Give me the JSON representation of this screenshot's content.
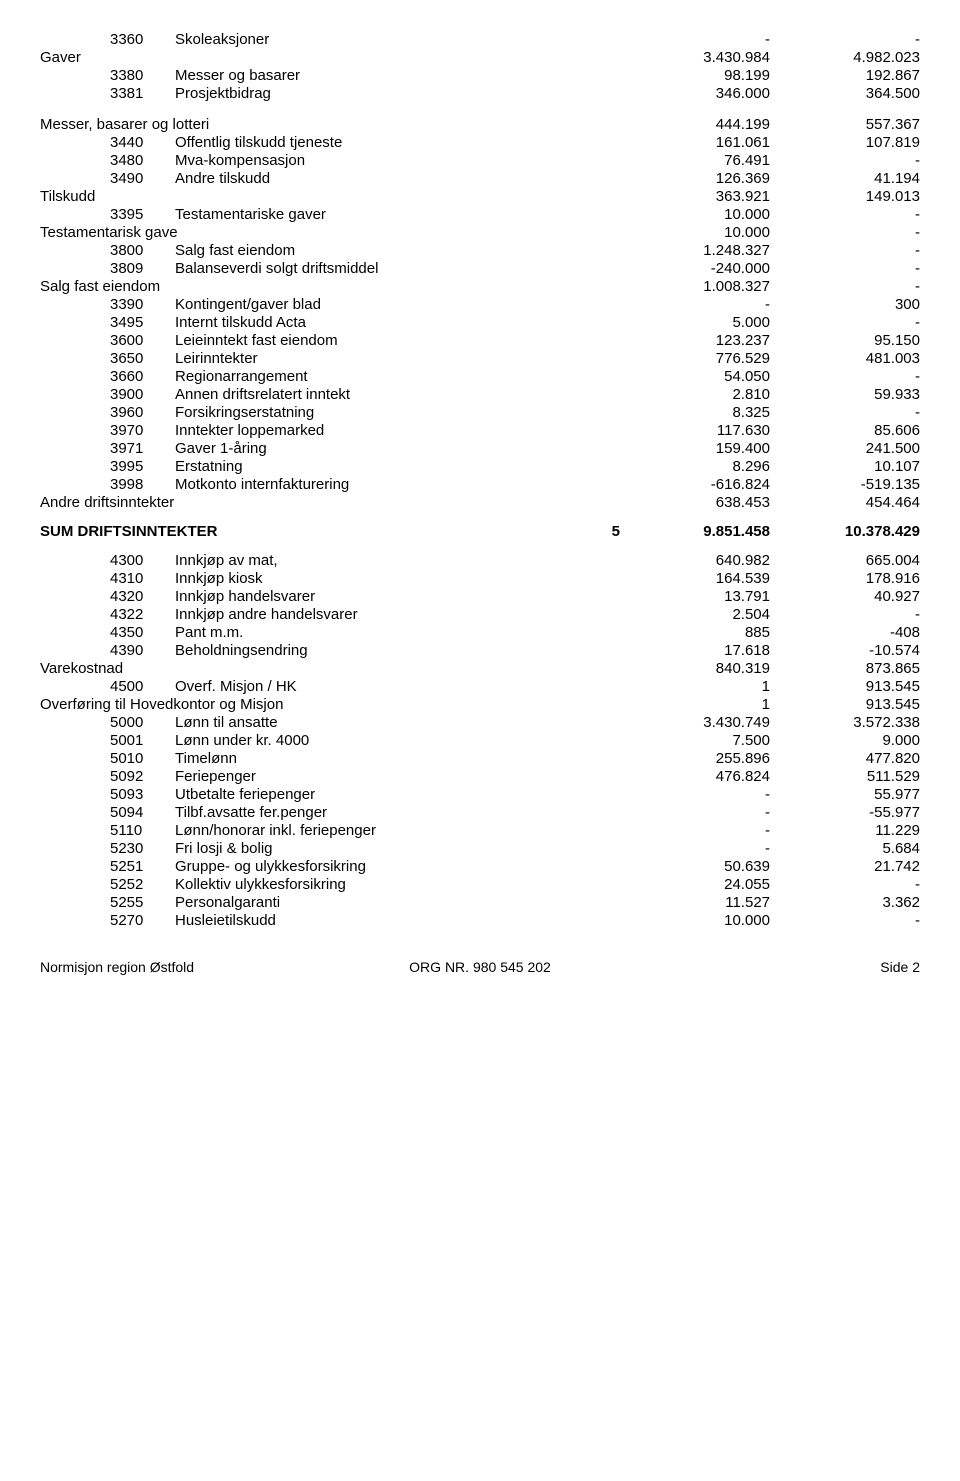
{
  "rows": [
    {
      "type": "line",
      "code": "3360",
      "label": "Skoleaksjoner",
      "v1": "-",
      "v2": "-"
    },
    {
      "type": "group",
      "label": "Gaver",
      "v1": "3.430.984",
      "v2": "4.982.023"
    },
    {
      "type": "line",
      "code": "3380",
      "label": "Messer og basarer",
      "v1": "98.199",
      "v2": "192.867"
    },
    {
      "type": "line",
      "code": "3381",
      "label": "Prosjektbidrag",
      "v1": "346.000",
      "v2": "364.500"
    },
    {
      "type": "spacer"
    },
    {
      "type": "group",
      "label": "Messer, basarer og lotteri",
      "v1": "444.199",
      "v2": "557.367"
    },
    {
      "type": "line",
      "code": "3440",
      "label": "Offentlig tilskudd tjeneste",
      "v1": "161.061",
      "v2": "107.819"
    },
    {
      "type": "line",
      "code": "3480",
      "label": "Mva-kompensasjon",
      "v1": "76.491",
      "v2": "-"
    },
    {
      "type": "line",
      "code": "3490",
      "label": "Andre tilskudd",
      "v1": "126.369",
      "v2": "41.194"
    },
    {
      "type": "group",
      "label": "Tilskudd",
      "v1": "363.921",
      "v2": "149.013"
    },
    {
      "type": "line",
      "code": "3395",
      "label": "Testamentariske gaver",
      "v1": "10.000",
      "v2": "-"
    },
    {
      "type": "group",
      "label": "Testamentarisk gave",
      "v1": "10.000",
      "v2": "-"
    },
    {
      "type": "line",
      "code": "3800",
      "label": "Salg fast eiendom",
      "v1": "1.248.327",
      "v2": "-"
    },
    {
      "type": "line",
      "code": "3809",
      "label": "Balanseverdi solgt driftsmiddel",
      "v1": "-240.000",
      "v2": "-"
    },
    {
      "type": "group",
      "label": "Salg fast eiendom",
      "v1": "1.008.327",
      "v2": "-"
    },
    {
      "type": "line",
      "code": "3390",
      "label": "Kontingent/gaver blad",
      "v1": "-",
      "v2": "300"
    },
    {
      "type": "line",
      "code": "3495",
      "label": "Internt tilskudd Acta",
      "v1": "5.000",
      "v2": "-"
    },
    {
      "type": "line",
      "code": "3600",
      "label": "Leieinntekt fast eiendom",
      "v1": "123.237",
      "v2": "95.150"
    },
    {
      "type": "line",
      "code": "3650",
      "label": "Leirinntekter",
      "v1": "776.529",
      "v2": "481.003"
    },
    {
      "type": "line",
      "code": "3660",
      "label": "Regionarrangement",
      "v1": "54.050",
      "v2": "-"
    },
    {
      "type": "line",
      "code": "3900",
      "label": "Annen driftsrelatert inntekt",
      "v1": "2.810",
      "v2": "59.933"
    },
    {
      "type": "line",
      "code": "3960",
      "label": "Forsikringserstatning",
      "v1": "8.325",
      "v2": "-"
    },
    {
      "type": "line",
      "code": "3970",
      "label": "Inntekter loppemarked",
      "v1": "117.630",
      "v2": "85.606"
    },
    {
      "type": "line",
      "code": "3971",
      "label": "Gaver  1-åring",
      "v1": "159.400",
      "v2": "241.500"
    },
    {
      "type": "line",
      "code": "3995",
      "label": "Erstatning",
      "v1": "8.296",
      "v2": "10.107"
    },
    {
      "type": "line",
      "code": "3998",
      "label": "Motkonto internfakturering",
      "v1": "-616.824",
      "v2": "-519.135"
    },
    {
      "type": "group",
      "label": "Andre driftsinntekter",
      "v1": "638.453",
      "v2": "454.464"
    },
    {
      "type": "sum",
      "label": "SUM DRIFTSINNTEKTER",
      "note": "5",
      "v1": "9.851.458",
      "v2": "10.378.429"
    },
    {
      "type": "line",
      "code": "4300",
      "label": "Innkjøp av mat,",
      "v1": "640.982",
      "v2": "665.004"
    },
    {
      "type": "line",
      "code": "4310",
      "label": "Innkjøp kiosk",
      "v1": "164.539",
      "v2": "178.916"
    },
    {
      "type": "line",
      "code": "4320",
      "label": "Innkjøp handelsvarer",
      "v1": "13.791",
      "v2": "40.927"
    },
    {
      "type": "line",
      "code": "4322",
      "label": "Innkjøp andre handelsvarer",
      "v1": "2.504",
      "v2": "-"
    },
    {
      "type": "line",
      "code": "4350",
      "label": "Pant m.m.",
      "v1": "885",
      "v2": "-408"
    },
    {
      "type": "line",
      "code": "4390",
      "label": "Beholdningsendring",
      "v1": "17.618",
      "v2": "-10.574"
    },
    {
      "type": "group",
      "label": "Varekostnad",
      "v1": "840.319",
      "v2": "873.865"
    },
    {
      "type": "line",
      "code": "4500",
      "label": "Overf. Misjon / HK",
      "v1": "1",
      "v2": "913.545"
    },
    {
      "type": "group",
      "label": "Overføring til Hovedkontor og Misjon",
      "v1": "1",
      "v2": "913.545"
    },
    {
      "type": "line",
      "code": "5000",
      "label": "Lønn til ansatte",
      "v1": "3.430.749",
      "v2": "3.572.338"
    },
    {
      "type": "line",
      "code": "5001",
      "label": "Lønn under kr. 4000",
      "v1": "7.500",
      "v2": "9.000"
    },
    {
      "type": "line",
      "code": "5010",
      "label": "Timelønn",
      "v1": "255.896",
      "v2": "477.820"
    },
    {
      "type": "line",
      "code": "5092",
      "label": "Feriepenger",
      "v1": "476.824",
      "v2": "511.529"
    },
    {
      "type": "line",
      "code": "5093",
      "label": "Utbetalte feriepenger",
      "v1": "-",
      "v2": "55.977"
    },
    {
      "type": "line",
      "code": "5094",
      "label": "Tilbf.avsatte fer.penger",
      "v1": "-",
      "v2": "-55.977"
    },
    {
      "type": "line",
      "code": "5110",
      "label": "Lønn/honorar inkl. feriepenger",
      "v1": "-",
      "v2": "11.229"
    },
    {
      "type": "line",
      "code": "5230",
      "label": "Fri losji & bolig",
      "v1": "-",
      "v2": "5.684"
    },
    {
      "type": "line",
      "code": "5251",
      "label": "Gruppe- og ulykkesforsikring",
      "v1": "50.639",
      "v2": "21.742"
    },
    {
      "type": "line",
      "code": "5252",
      "label": "Kollektiv ulykkesforsikring",
      "v1": "24.055",
      "v2": "-"
    },
    {
      "type": "line",
      "code": "5255",
      "label": "Personalgaranti",
      "v1": "11.527",
      "v2": "3.362"
    },
    {
      "type": "line",
      "code": "5270",
      "label": "Husleietilskudd",
      "v1": "10.000",
      "v2": "-"
    }
  ],
  "footer": {
    "left": "Normisjon region Østfold",
    "mid": "ORG NR. 980 545 202",
    "right": "Side 2"
  }
}
